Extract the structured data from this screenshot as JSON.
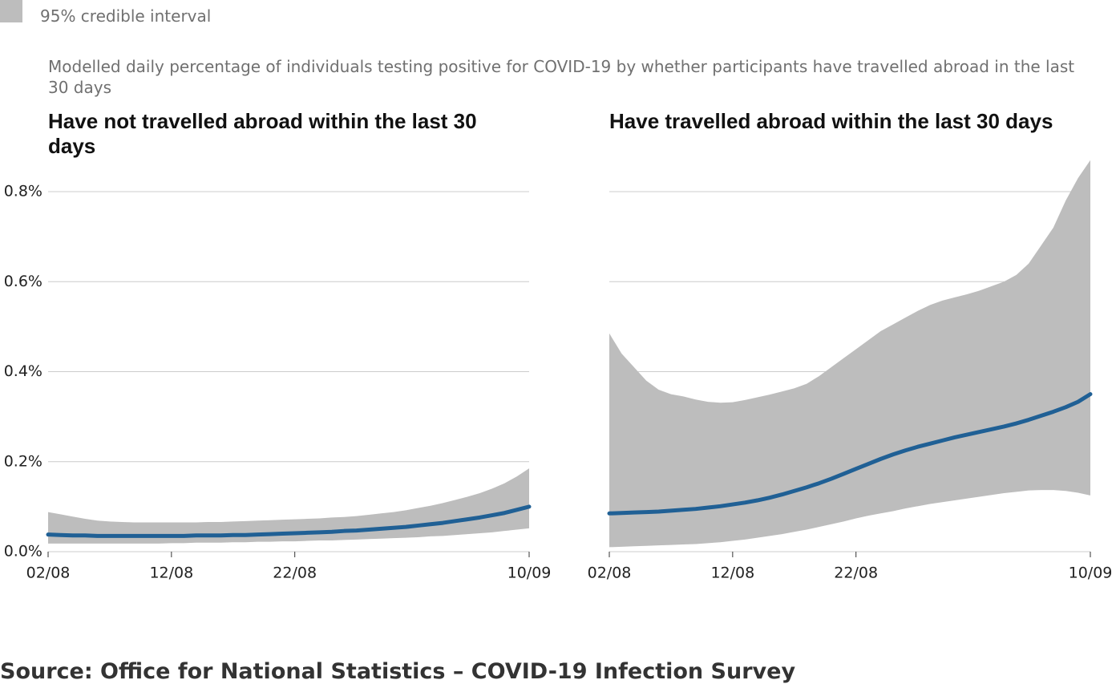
{
  "subtitle": "Modelled daily percentage of individuals testing positive for COVID-19 by whether participants have travelled abroad in the last 30 days",
  "source": "Source: Office for National Statistics – COVID-19 Infection Survey",
  "chart_data": [
    {
      "type": "line",
      "title": "Have not travelled abroad within the last 30 days",
      "x": [
        "02/08",
        null,
        null,
        null,
        null,
        null,
        null,
        null,
        null,
        null,
        "12/08",
        null,
        null,
        null,
        null,
        null,
        null,
        null,
        null,
        null,
        "22/08",
        null,
        null,
        null,
        null,
        null,
        null,
        null,
        null,
        null,
        null,
        null,
        null,
        null,
        null,
        null,
        null,
        null,
        null,
        "10/09"
      ],
      "ylim": [
        0,
        0.8
      ],
      "yticks": [
        {
          "value": 0,
          "label": "0.0%"
        },
        {
          "value": 0.2,
          "label": "0.2%"
        },
        {
          "value": 0.4,
          "label": "0.4%"
        },
        {
          "value": 0.6,
          "label": "0.6%"
        },
        {
          "value": 0.8,
          "label": "0.8%"
        }
      ],
      "grid": true,
      "series": [
        {
          "name": "95% credible interval",
          "type": "band",
          "color": "#bdbdbd",
          "lower": [
            0.018,
            0.018,
            0.018,
            0.018,
            0.018,
            0.018,
            0.018,
            0.018,
            0.018,
            0.018,
            0.019,
            0.019,
            0.02,
            0.02,
            0.02,
            0.021,
            0.021,
            0.022,
            0.022,
            0.023,
            0.023,
            0.024,
            0.025,
            0.025,
            0.026,
            0.027,
            0.028,
            0.029,
            0.03,
            0.031,
            0.032,
            0.034,
            0.035,
            0.037,
            0.039,
            0.041,
            0.043,
            0.046,
            0.049,
            0.052
          ],
          "upper": [
            0.088,
            0.083,
            0.078,
            0.073,
            0.069,
            0.067,
            0.066,
            0.065,
            0.065,
            0.065,
            0.065,
            0.065,
            0.065,
            0.066,
            0.066,
            0.067,
            0.068,
            0.069,
            0.07,
            0.071,
            0.072,
            0.073,
            0.074,
            0.076,
            0.077,
            0.079,
            0.082,
            0.085,
            0.088,
            0.092,
            0.097,
            0.102,
            0.108,
            0.115,
            0.122,
            0.13,
            0.14,
            0.152,
            0.167,
            0.185
          ]
        },
        {
          "type": "line",
          "color": "#206095",
          "values": [
            0.038,
            0.037,
            0.036,
            0.036,
            0.035,
            0.035,
            0.035,
            0.035,
            0.035,
            0.035,
            0.035,
            0.035,
            0.036,
            0.036,
            0.036,
            0.037,
            0.037,
            0.038,
            0.039,
            0.04,
            0.041,
            0.042,
            0.043,
            0.044,
            0.046,
            0.047,
            0.049,
            0.051,
            0.053,
            0.055,
            0.058,
            0.061,
            0.064,
            0.068,
            0.072,
            0.076,
            0.081,
            0.086,
            0.093,
            0.1
          ]
        }
      ]
    },
    {
      "type": "line",
      "title": "Have travelled abroad within the last 30 days",
      "x": [
        "02/08",
        null,
        null,
        null,
        null,
        null,
        null,
        null,
        null,
        null,
        "12/08",
        null,
        null,
        null,
        null,
        null,
        null,
        null,
        null,
        null,
        "22/08",
        null,
        null,
        null,
        null,
        null,
        null,
        null,
        null,
        null,
        null,
        null,
        null,
        null,
        null,
        null,
        null,
        null,
        null,
        "10/09"
      ],
      "ylim": [
        0,
        0.8
      ],
      "yticks": [
        0,
        0.2,
        0.4,
        0.6,
        0.8
      ],
      "ytick_labels": false,
      "grid": true,
      "series": [
        {
          "type": "band",
          "color": "#bdbdbd",
          "lower": [
            0.01,
            0.011,
            0.012,
            0.013,
            0.014,
            0.015,
            0.016,
            0.017,
            0.019,
            0.021,
            0.024,
            0.027,
            0.031,
            0.035,
            0.039,
            0.044,
            0.049,
            0.055,
            0.061,
            0.067,
            0.074,
            0.08,
            0.085,
            0.09,
            0.096,
            0.101,
            0.106,
            0.11,
            0.114,
            0.118,
            0.122,
            0.126,
            0.13,
            0.133,
            0.136,
            0.137,
            0.137,
            0.135,
            0.131,
            0.125
          ],
          "upper": [
            0.485,
            0.44,
            0.41,
            0.38,
            0.36,
            0.35,
            0.345,
            0.338,
            0.333,
            0.331,
            0.332,
            0.337,
            0.343,
            0.349,
            0.356,
            0.363,
            0.373,
            0.39,
            0.41,
            0.43,
            0.45,
            0.47,
            0.49,
            0.505,
            0.52,
            0.535,
            0.548,
            0.558,
            0.565,
            0.572,
            0.58,
            0.59,
            0.6,
            0.615,
            0.64,
            0.68,
            0.72,
            0.78,
            0.83,
            0.87
          ]
        },
        {
          "type": "line",
          "color": "#206095",
          "values": [
            0.085,
            0.086,
            0.087,
            0.088,
            0.089,
            0.091,
            0.093,
            0.095,
            0.098,
            0.101,
            0.105,
            0.109,
            0.114,
            0.12,
            0.127,
            0.135,
            0.143,
            0.152,
            0.162,
            0.173,
            0.184,
            0.195,
            0.206,
            0.216,
            0.225,
            0.233,
            0.24,
            0.247,
            0.254,
            0.26,
            0.266,
            0.272,
            0.278,
            0.285,
            0.293,
            0.302,
            0.311,
            0.321,
            0.333,
            0.35
          ]
        }
      ]
    }
  ]
}
